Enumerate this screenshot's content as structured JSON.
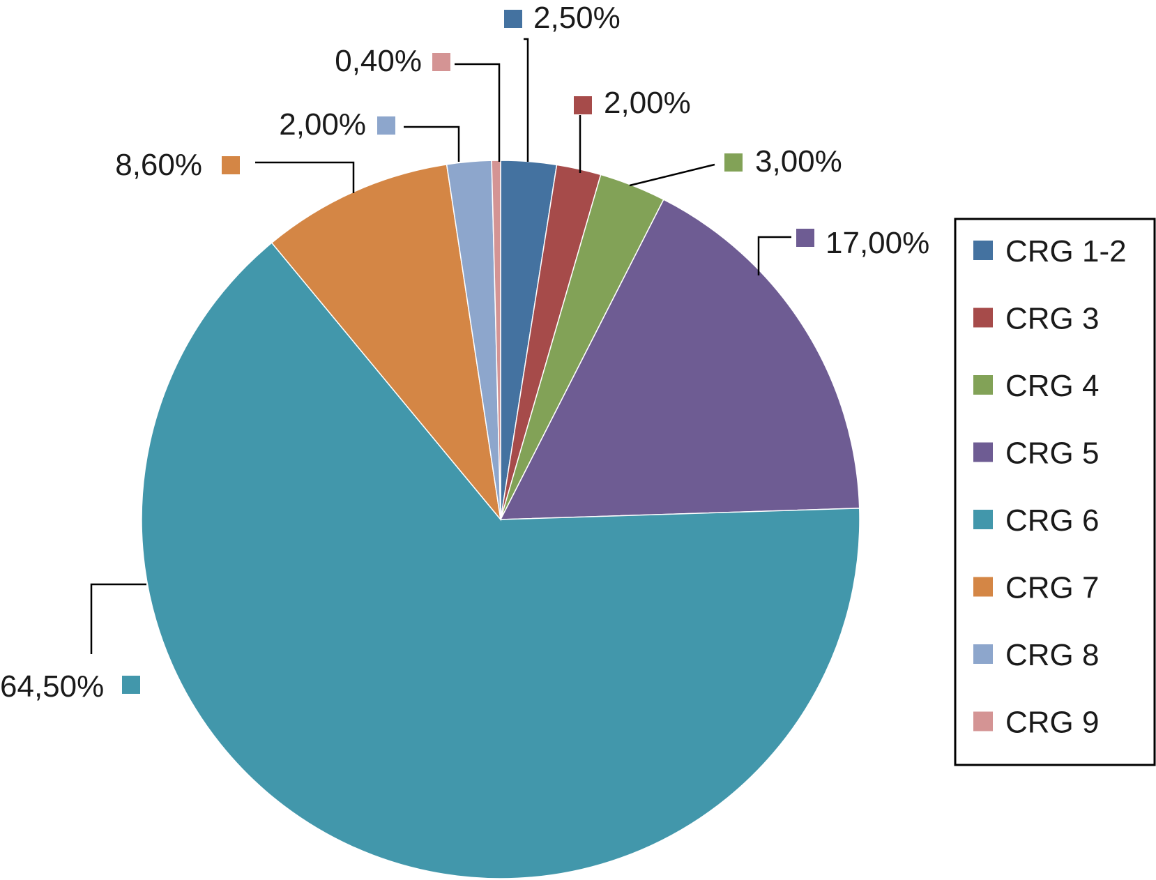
{
  "chart_data": {
    "type": "pie",
    "title": "",
    "categories": [
      "CRG 1-2",
      "CRG 3",
      "CRG 4",
      "CRG 5",
      "CRG 6",
      "CRG 7",
      "CRG 8",
      "CRG 9"
    ],
    "values": [
      2.5,
      2.0,
      3.0,
      17.0,
      64.5,
      8.6,
      2.0,
      0.4
    ],
    "data_labels": [
      "2,50%",
      "2,00%",
      "3,00%",
      "17,00%",
      "64,50%",
      "8,60%",
      "2,00%",
      "0,40%"
    ],
    "colors": [
      "#4472A0",
      "#A64B4A",
      "#82A257",
      "#6E5C93",
      "#4297AB",
      "#D48645",
      "#8DA6CC",
      "#D49494"
    ],
    "start_angle": "12 o'clock",
    "direction": "clockwise",
    "legend": {
      "position": "right",
      "entries": [
        "CRG 1-2",
        "CRG 3",
        "CRG 4",
        "CRG 5",
        "CRG 6",
        "CRG 7",
        "CRG 8",
        "CRG 9"
      ]
    }
  }
}
